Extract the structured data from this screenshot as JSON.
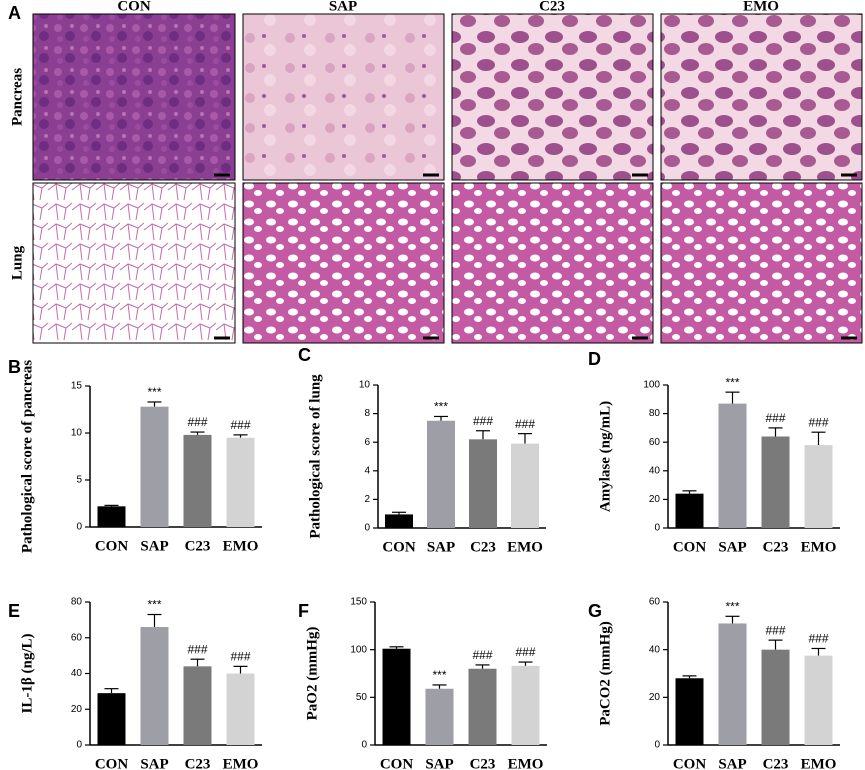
{
  "figure": {
    "label": "A",
    "columns": [
      "CON",
      "SAP",
      "C23",
      "EMO"
    ],
    "rows": [
      "Pancreas",
      "Lung"
    ]
  },
  "chart_data": [
    {
      "type": "bar",
      "panel": "B",
      "ylabel": "Pathological score of pancreas",
      "categories": [
        "CON",
        "SAP",
        "C23",
        "EMO"
      ],
      "values": [
        2.2,
        12.8,
        9.8,
        9.5
      ],
      "errors": [
        0.1,
        0.5,
        0.3,
        0.3
      ],
      "annotations": [
        null,
        "***",
        "###",
        "###"
      ],
      "colors": [
        "#000000",
        "#9e9ea6",
        "#7a7a7a",
        "#d3d3d3"
      ],
      "ylim": [
        0,
        15
      ],
      "yticks": [
        0,
        5,
        10,
        15
      ]
    },
    {
      "type": "bar",
      "panel": "C",
      "ylabel": "Pathological score of lung",
      "categories": [
        "CON",
        "SAP",
        "C23",
        "EMO"
      ],
      "values": [
        0.95,
        7.5,
        6.2,
        5.9
      ],
      "errors": [
        0.15,
        0.3,
        0.6,
        0.7
      ],
      "annotations": [
        null,
        "***",
        "###",
        "###"
      ],
      "colors": [
        "#000000",
        "#9e9ea6",
        "#7a7a7a",
        "#d3d3d3"
      ],
      "ylim": [
        0,
        10
      ],
      "yticks": [
        0,
        2,
        4,
        6,
        8,
        10
      ]
    },
    {
      "type": "bar",
      "panel": "D",
      "ylabel": "Amylase (ng/mL)",
      "categories": [
        "CON",
        "SAP",
        "C23",
        "EMO"
      ],
      "values": [
        24,
        87,
        64,
        58
      ],
      "errors": [
        2,
        8,
        6,
        9
      ],
      "annotations": [
        null,
        "***",
        "###",
        "###"
      ],
      "colors": [
        "#000000",
        "#9e9ea6",
        "#7a7a7a",
        "#d3d3d3"
      ],
      "ylim": [
        0,
        100
      ],
      "yticks": [
        0,
        20,
        40,
        60,
        80,
        100
      ]
    },
    {
      "type": "bar",
      "panel": "E",
      "ylabel": "IL-1β (ng/L)",
      "categories": [
        "CON",
        "SAP",
        "C23",
        "EMO"
      ],
      "values": [
        29,
        66,
        44,
        40
      ],
      "errors": [
        2.5,
        7,
        4,
        4
      ],
      "annotations": [
        null,
        "***",
        "###",
        "###"
      ],
      "colors": [
        "#000000",
        "#9e9ea6",
        "#7a7a7a",
        "#d3d3d3"
      ],
      "ylim": [
        0,
        80
      ],
      "yticks": [
        0,
        20,
        40,
        60,
        80
      ]
    },
    {
      "type": "bar",
      "panel": "F",
      "ylabel": "PaO2 (mmHg)",
      "categories": [
        "CON",
        "SAP",
        "C23",
        "EMO"
      ],
      "values": [
        101,
        59,
        80,
        83
      ],
      "errors": [
        2,
        4,
        4,
        4
      ],
      "annotations": [
        null,
        "***",
        "###",
        "###"
      ],
      "colors": [
        "#000000",
        "#9e9ea6",
        "#7a7a7a",
        "#d3d3d3"
      ],
      "ylim": [
        0,
        150
      ],
      "yticks": [
        0,
        50,
        100,
        150
      ]
    },
    {
      "type": "bar",
      "panel": "G",
      "ylabel": "PaCO2 (mmHg)",
      "categories": [
        "CON",
        "SAP",
        "C23",
        "EMO"
      ],
      "values": [
        28,
        51,
        40,
        37.5
      ],
      "errors": [
        1,
        3,
        4,
        3
      ],
      "annotations": [
        null,
        "***",
        "###",
        "###"
      ],
      "colors": [
        "#000000",
        "#9e9ea6",
        "#7a7a7a",
        "#d3d3d3"
      ],
      "ylim": [
        0,
        60
      ],
      "yticks": [
        0,
        20,
        40,
        60
      ]
    }
  ]
}
